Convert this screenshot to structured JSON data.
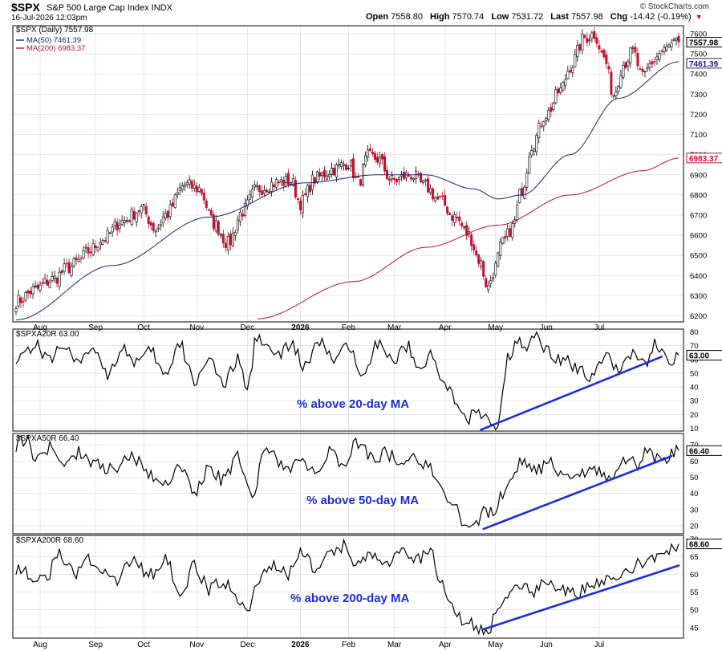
{
  "header": {
    "symbol": "$SPX",
    "description": "S&P 500 Large Cap Index  INDX",
    "datetime": "16-Jul-2026 12:03pm",
    "credit": "© StockCharts.com",
    "open_label": "Open",
    "open_value": "7558.80",
    "high_label": "High",
    "high_value": "7570.74",
    "low_label": "Low",
    "low_value": "7531.72",
    "last_label": "Last",
    "last_value": "7557.98",
    "chg_label": "Chg",
    "chg_value": "-14.42 (-0.19%)"
  },
  "colors": {
    "up": "#000000",
    "down": "#c8102e",
    "ma50": "#1a237e",
    "ma200": "#c8102e",
    "trendline": "#1c2fd6",
    "annotation": "#1c2fd6",
    "grid": "#d9d9d9"
  },
  "chart_data": [
    {
      "type": "candlestick",
      "title": "$SPX (Daily) 7557.98",
      "legend": [
        {
          "name": "MA(50) 7461.39",
          "color": "#1a237e"
        },
        {
          "name": "MA(200) 6983.37",
          "color": "#c8102e"
        }
      ],
      "ylim": [
        6170,
        7640
      ],
      "yticks": [
        6200,
        6300,
        6400,
        6500,
        6600,
        6700,
        6800,
        6900,
        7000,
        7100,
        7200,
        7300,
        7400,
        7500,
        7600
      ],
      "price_anchors": [
        [
          0,
          6270
        ],
        [
          8,
          6330
        ],
        [
          15,
          6380
        ],
        [
          22,
          6440
        ],
        [
          26,
          6470
        ],
        [
          30,
          6520
        ],
        [
          36,
          6580
        ],
        [
          44,
          6670
        ],
        [
          52,
          6730
        ],
        [
          58,
          6630
        ],
        [
          62,
          6700
        ],
        [
          70,
          6850
        ],
        [
          76,
          6830
        ],
        [
          82,
          6660
        ],
        [
          88,
          6560
        ],
        [
          94,
          6720
        ],
        [
          100,
          6830
        ],
        [
          108,
          6860
        ],
        [
          114,
          6870
        ],
        [
          118,
          6760
        ],
        [
          124,
          6880
        ],
        [
          132,
          6930
        ],
        [
          138,
          6960
        ],
        [
          142,
          6860
        ],
        [
          146,
          6990
        ],
        [
          150,
          6980
        ],
        [
          156,
          6870
        ],
        [
          164,
          6900
        ],
        [
          170,
          6840
        ],
        [
          176,
          6770
        ],
        [
          182,
          6690
        ],
        [
          188,
          6600
        ],
        [
          192,
          6480
        ],
        [
          196,
          6340
        ],
        [
          198,
          6420
        ],
        [
          202,
          6560
        ],
        [
          206,
          6640
        ],
        [
          210,
          6830
        ],
        [
          214,
          7050
        ],
        [
          220,
          7200
        ],
        [
          226,
          7320
        ],
        [
          230,
          7440
        ],
        [
          236,
          7580
        ],
        [
          240,
          7600
        ],
        [
          244,
          7480
        ],
        [
          248,
          7300
        ],
        [
          252,
          7450
        ],
        [
          256,
          7510
        ],
        [
          260,
          7380
        ],
        [
          264,
          7460
        ],
        [
          268,
          7510
        ],
        [
          272,
          7540
        ],
        [
          275,
          7558
        ]
      ],
      "ma50_anchors": [
        [
          0,
          6180
        ],
        [
          40,
          6450
        ],
        [
          80,
          6690
        ],
        [
          120,
          6860
        ],
        [
          150,
          6900
        ],
        [
          170,
          6900
        ],
        [
          190,
          6830
        ],
        [
          200,
          6780
        ],
        [
          210,
          6800
        ],
        [
          230,
          7000
        ],
        [
          250,
          7280
        ],
        [
          275,
          7461
        ]
      ],
      "ma200_anchors": [
        [
          100,
          6185
        ],
        [
          140,
          6370
        ],
        [
          170,
          6540
        ],
        [
          200,
          6650
        ],
        [
          230,
          6800
        ],
        [
          260,
          6920
        ],
        [
          275,
          6983
        ]
      ],
      "last_label": "7557.98",
      "ma50_label": "7461.39",
      "ma200_label": "6983.37"
    },
    {
      "type": "line",
      "title": "$SPXA20R 63.00",
      "ylim": [
        8,
        82
      ],
      "yticks": [
        10,
        20,
        30,
        40,
        50,
        60,
        70,
        80
      ],
      "anchors": [
        [
          0,
          62
        ],
        [
          8,
          70
        ],
        [
          14,
          60
        ],
        [
          20,
          72
        ],
        [
          26,
          55
        ],
        [
          32,
          70
        ],
        [
          38,
          50
        ],
        [
          44,
          68
        ],
        [
          50,
          58
        ],
        [
          56,
          65
        ],
        [
          62,
          48
        ],
        [
          68,
          70
        ],
        [
          74,
          44
        ],
        [
          80,
          62
        ],
        [
          86,
          40
        ],
        [
          92,
          60
        ],
        [
          96,
          38
        ],
        [
          100,
          78
        ],
        [
          108,
          62
        ],
        [
          114,
          70
        ],
        [
          120,
          55
        ],
        [
          126,
          72
        ],
        [
          132,
          60
        ],
        [
          138,
          68
        ],
        [
          144,
          52
        ],
        [
          150,
          72
        ],
        [
          156,
          58
        ],
        [
          162,
          70
        ],
        [
          168,
          55
        ],
        [
          172,
          62
        ],
        [
          178,
          42
        ],
        [
          184,
          25
        ],
        [
          188,
          18
        ],
        [
          192,
          20
        ],
        [
          196,
          15
        ],
        [
          200,
          12
        ],
        [
          204,
          60
        ],
        [
          208,
          75
        ],
        [
          212,
          66
        ],
        [
          216,
          80
        ],
        [
          220,
          68
        ],
        [
          226,
          60
        ],
        [
          232,
          55
        ],
        [
          238,
          48
        ],
        [
          244,
          62
        ],
        [
          250,
          55
        ],
        [
          256,
          65
        ],
        [
          262,
          58
        ],
        [
          266,
          72
        ],
        [
          270,
          58
        ],
        [
          275,
          63
        ]
      ],
      "trendline": [
        [
          193,
          9
        ],
        [
          268,
          62
        ]
      ],
      "annotation": "% above 20-day MA",
      "last_label": "63.00"
    },
    {
      "type": "line",
      "title": "$SPXA50R 66.40",
      "ylim": [
        15,
        77
      ],
      "yticks": [
        20,
        30,
        40,
        50,
        60,
        70
      ],
      "anchors": [
        [
          0,
          70
        ],
        [
          4,
          74
        ],
        [
          8,
          62
        ],
        [
          14,
          68
        ],
        [
          20,
          56
        ],
        [
          26,
          66
        ],
        [
          32,
          58
        ],
        [
          40,
          55
        ],
        [
          48,
          62
        ],
        [
          56,
          52
        ],
        [
          62,
          45
        ],
        [
          68,
          58
        ],
        [
          74,
          40
        ],
        [
          80,
          55
        ],
        [
          86,
          48
        ],
        [
          92,
          62
        ],
        [
          98,
          40
        ],
        [
          104,
          68
        ],
        [
          112,
          55
        ],
        [
          118,
          60
        ],
        [
          124,
          52
        ],
        [
          130,
          66
        ],
        [
          136,
          58
        ],
        [
          142,
          72
        ],
        [
          148,
          62
        ],
        [
          154,
          65
        ],
        [
          160,
          56
        ],
        [
          166,
          62
        ],
        [
          172,
          55
        ],
        [
          176,
          42
        ],
        [
          182,
          30
        ],
        [
          186,
          22
        ],
        [
          190,
          20
        ],
        [
          194,
          28
        ],
        [
          198,
          30
        ],
        [
          202,
          38
        ],
        [
          206,
          52
        ],
        [
          210,
          60
        ],
        [
          216,
          55
        ],
        [
          222,
          58
        ],
        [
          228,
          48
        ],
        [
          234,
          52
        ],
        [
          240,
          55
        ],
        [
          246,
          48
        ],
        [
          252,
          62
        ],
        [
          258,
          58
        ],
        [
          262,
          66
        ],
        [
          268,
          60
        ],
        [
          275,
          66.4
        ]
      ],
      "trendline": [
        [
          194,
          18
        ],
        [
          272,
          63
        ]
      ],
      "annotation": "% above 50-day MA",
      "last_label": "66.40"
    },
    {
      "type": "line",
      "title": "$SPXA200R 68.60",
      "ylim": [
        42,
        71
      ],
      "yticks": [
        45,
        50,
        55,
        60,
        65,
        70
      ],
      "anchors": [
        [
          0,
          62
        ],
        [
          6,
          60
        ],
        [
          12,
          58
        ],
        [
          18,
          66
        ],
        [
          24,
          60
        ],
        [
          30,
          64
        ],
        [
          36,
          62
        ],
        [
          42,
          58
        ],
        [
          48,
          64
        ],
        [
          56,
          60
        ],
        [
          62,
          64
        ],
        [
          68,
          55
        ],
        [
          74,
          62
        ],
        [
          80,
          56
        ],
        [
          86,
          58
        ],
        [
          92,
          54
        ],
        [
          96,
          50
        ],
        [
          100,
          58
        ],
        [
          106,
          62
        ],
        [
          112,
          60
        ],
        [
          118,
          66
        ],
        [
          124,
          62
        ],
        [
          130,
          65
        ],
        [
          136,
          68
        ],
        [
          142,
          62
        ],
        [
          148,
          66
        ],
        [
          154,
          64
        ],
        [
          160,
          66
        ],
        [
          166,
          64
        ],
        [
          172,
          66
        ],
        [
          176,
          58
        ],
        [
          180,
          52
        ],
        [
          184,
          48
        ],
        [
          188,
          46
        ],
        [
          192,
          44
        ],
        [
          196,
          44
        ],
        [
          200,
          52
        ],
        [
          204,
          55
        ],
        [
          208,
          58
        ],
        [
          214,
          55
        ],
        [
          220,
          57
        ],
        [
          226,
          55
        ],
        [
          232,
          55
        ],
        [
          238,
          57
        ],
        [
          244,
          58
        ],
        [
          250,
          60
        ],
        [
          256,
          62
        ],
        [
          262,
          64
        ],
        [
          268,
          66
        ],
        [
          275,
          68.6
        ]
      ],
      "trendline": [
        [
          194,
          44.5
        ],
        [
          275,
          62.5
        ]
      ],
      "annotation": "% above 200-day MA",
      "last_label": "68.60"
    }
  ],
  "x_axis": {
    "labels": [
      {
        "text": "Aug",
        "idx": 10,
        "bold": false
      },
      {
        "text": "Sep",
        "idx": 33,
        "bold": false
      },
      {
        "text": "Oct",
        "idx": 53,
        "bold": false
      },
      {
        "text": "Nov",
        "idx": 75,
        "bold": false
      },
      {
        "text": "Dec",
        "idx": 96,
        "bold": false
      },
      {
        "text": "2026",
        "idx": 118,
        "bold": true
      },
      {
        "text": "Feb",
        "idx": 138,
        "bold": false
      },
      {
        "text": "Mar",
        "idx": 157,
        "bold": false
      },
      {
        "text": "Apr",
        "idx": 178,
        "bold": false
      },
      {
        "text": "May",
        "idx": 199,
        "bold": false
      },
      {
        "text": "Jun",
        "idx": 220,
        "bold": false
      },
      {
        "text": "Jul",
        "idx": 242,
        "bold": false
      }
    ],
    "total_bars": 276
  }
}
